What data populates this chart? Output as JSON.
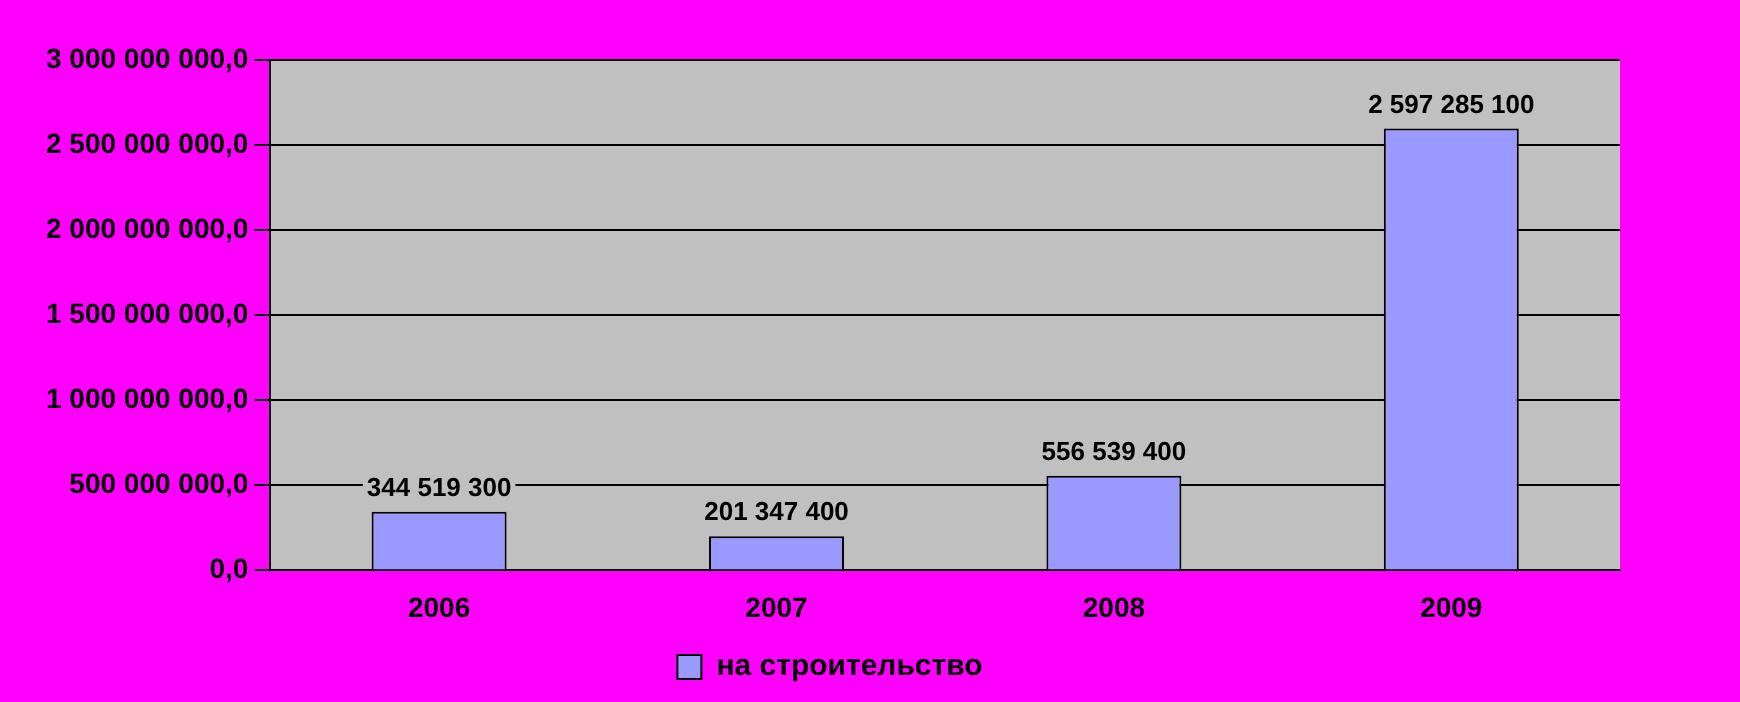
{
  "chart_data": {
    "type": "bar",
    "categories": [
      "2006",
      "2007",
      "2008",
      "2009"
    ],
    "series": [
      {
        "name": "на строительство",
        "color": "#9999ff",
        "values": [
          344519300,
          201347400,
          556539400,
          2597285100
        ],
        "value_labels": [
          "344 519 300",
          "201 347 400",
          "556 539 400",
          "2 597 285 100"
        ]
      }
    ],
    "ylim": [
      0,
      3000000000
    ],
    "yticks": [
      {
        "value": 0,
        "label": "0,0"
      },
      {
        "value": 500000000,
        "label": "500 000 000,0"
      },
      {
        "value": 1000000000,
        "label": "1 000 000 000,0"
      },
      {
        "value": 1500000000,
        "label": "1 500 000 000,0"
      },
      {
        "value": 2000000000,
        "label": "2 000 000 000,0"
      },
      {
        "value": 2500000000,
        "label": "2 500 000 000,0"
      },
      {
        "value": 3000000000,
        "label": "3 000 000 000,0"
      }
    ],
    "grid": "y",
    "legend": "bottom"
  }
}
